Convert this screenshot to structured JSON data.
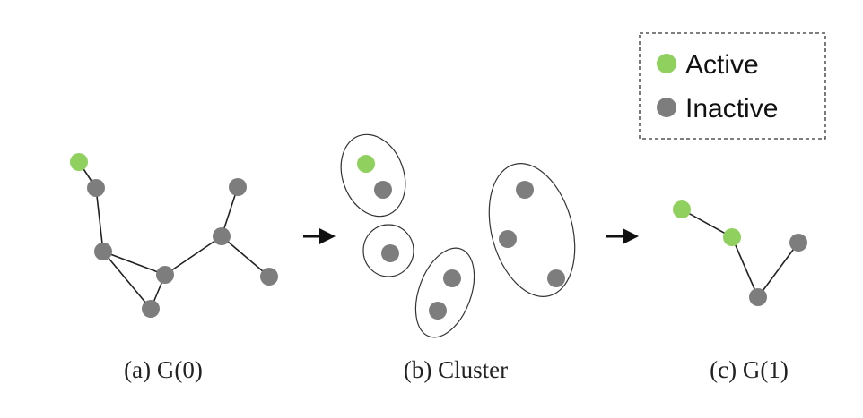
{
  "legend": {
    "active_label": "Active",
    "inactive_label": "Inactive",
    "active_color": "#8fd05f",
    "inactive_color": "#7d7d7d"
  },
  "panels": [
    {
      "id": "a",
      "caption": "(a) G(0)",
      "nodes": [
        {
          "id": "a1",
          "state": "active"
        },
        {
          "id": "a2",
          "state": "inactive"
        },
        {
          "id": "a3",
          "state": "inactive"
        },
        {
          "id": "a4",
          "state": "inactive"
        },
        {
          "id": "a5",
          "state": "inactive"
        },
        {
          "id": "a6",
          "state": "inactive"
        },
        {
          "id": "a7",
          "state": "inactive"
        },
        {
          "id": "a8",
          "state": "inactive"
        }
      ],
      "edges": [
        [
          "a1",
          "a2"
        ],
        [
          "a2",
          "a3"
        ],
        [
          "a3",
          "a4"
        ],
        [
          "a3",
          "a5"
        ],
        [
          "a4",
          "a5"
        ],
        [
          "a4",
          "a6"
        ],
        [
          "a6",
          "a7"
        ],
        [
          "a6",
          "a8"
        ]
      ]
    },
    {
      "id": "b",
      "caption": "(b) Cluster",
      "clusters": [
        {
          "id": "c1",
          "nodes": [
            {
              "id": "b1",
              "state": "active"
            },
            {
              "id": "b2",
              "state": "inactive"
            }
          ]
        },
        {
          "id": "c2",
          "nodes": [
            {
              "id": "b3",
              "state": "inactive"
            }
          ]
        },
        {
          "id": "c3",
          "nodes": [
            {
              "id": "b4",
              "state": "inactive"
            },
            {
              "id": "b5",
              "state": "inactive"
            }
          ]
        },
        {
          "id": "c4",
          "nodes": [
            {
              "id": "b6",
              "state": "inactive"
            },
            {
              "id": "b7",
              "state": "inactive"
            },
            {
              "id": "b8",
              "state": "inactive"
            }
          ]
        }
      ]
    },
    {
      "id": "c",
      "caption": "(c) G(1)",
      "nodes": [
        {
          "id": "g1",
          "state": "active"
        },
        {
          "id": "g2",
          "state": "active"
        },
        {
          "id": "g3",
          "state": "inactive"
        },
        {
          "id": "g4",
          "state": "inactive"
        }
      ],
      "edges": [
        [
          "g1",
          "g2"
        ],
        [
          "g2",
          "g3"
        ],
        [
          "g3",
          "g4"
        ]
      ]
    }
  ]
}
